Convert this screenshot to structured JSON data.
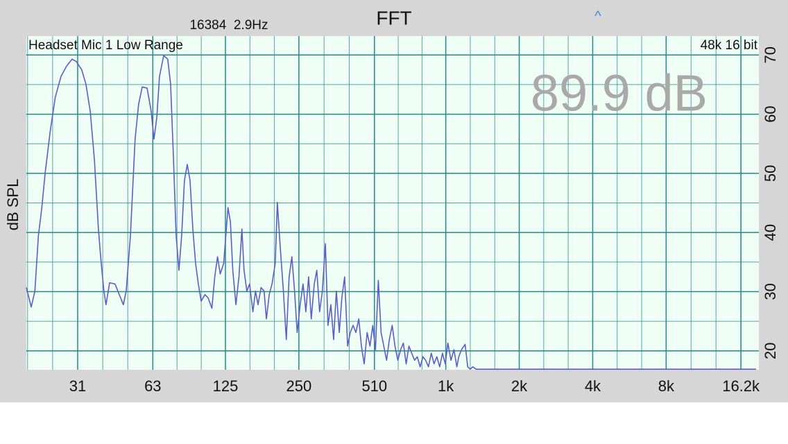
{
  "chart_data": {
    "type": "line",
    "title": "FFT",
    "y_label": "dB SPL",
    "annotations": {
      "resolution": "16384  2.9Hz",
      "input": "Headset Mic 1 Low Range",
      "format": "48k 16 bit",
      "level": "89.9 dB",
      "caret": "^"
    },
    "log_x": true,
    "grid": true,
    "color": "#5b5bd6",
    "xlim": [
      19.1,
      19190
    ],
    "xticks": [
      31,
      63,
      125,
      250,
      510,
      {
        "value": 1000,
        "label": "1k"
      },
      {
        "value": 2000,
        "label": "2k"
      },
      {
        "value": 4000,
        "label": "4k"
      },
      {
        "value": 8000,
        "label": "8k"
      },
      {
        "value": 16200,
        "label": "16.2k"
      }
    ],
    "ylim": [
      16.8,
      73.2
    ],
    "yticks": [
      20,
      30,
      40,
      50,
      60,
      70
    ],
    "x": [
      19.1,
      20.0,
      20.7,
      21.4,
      22.1,
      22.8,
      23.9,
      25.1,
      26.5,
      27.9,
      29.4,
      30.6,
      32.2,
      33.5,
      34.9,
      36.3,
      37.7,
      38.5,
      39.7,
      40.5,
      41.9,
      44.1,
      45.9,
      47.7,
      49.0,
      51.0,
      53.3,
      55.1,
      57.0,
      59.7,
      62.0,
      63.7,
      65.4,
      67.1,
      69.8,
      72.5,
      74.5,
      76.4,
      78.5,
      80.6,
      82.7,
      84.9,
      87.2,
      89.5,
      91.9,
      94.3,
      96.8,
      99.4,
      103,
      106,
      110,
      113,
      116,
      119,
      123,
      128,
      131,
      134,
      138,
      142,
      146,
      149,
      153,
      157,
      162,
      166,
      170,
      175,
      180,
      184,
      189,
      194,
      200,
      204,
      210,
      216,
      222,
      228,
      234,
      240,
      246,
      253,
      260,
      267,
      274,
      281,
      289,
      296,
      304,
      312,
      321,
      329,
      338,
      347,
      356,
      366,
      375,
      385,
      396,
      406,
      417,
      428,
      440,
      451,
      463,
      476,
      489,
      502,
      515,
      529,
      543,
      557,
      572,
      587,
      603,
      619,
      636,
      653,
      670,
      688,
      706,
      725,
      745,
      764,
      785,
      806,
      827,
      849,
      872,
      895,
      919,
      944,
      969,
      995,
      1020,
      1050,
      1080,
      1110,
      1130,
      1160,
      1200,
      1230,
      1260,
      1290,
      1330,
      18700
    ],
    "values": [
      30.7,
      27.4,
      30.1,
      39.5,
      44.2,
      50.0,
      57.0,
      62.9,
      66.4,
      68.1,
      69.3,
      68.9,
      67.5,
      65.1,
      60.5,
      52.3,
      40.6,
      35.9,
      30.1,
      27.8,
      31.5,
      31.3,
      29.5,
      27.8,
      30.1,
      39.5,
      55.8,
      61.7,
      64.6,
      64.4,
      60.5,
      55.8,
      59.4,
      66.4,
      69.9,
      69.3,
      65.1,
      53.5,
      39.5,
      33.6,
      39.5,
      48.8,
      51.5,
      48.8,
      40.6,
      34.8,
      31.3,
      28.4,
      29.5,
      29.0,
      27.2,
      32.5,
      35.9,
      33.0,
      34.8,
      44.2,
      41.8,
      33.6,
      27.8,
      32.5,
      40.6,
      33.6,
      30.1,
      31.3,
      26.6,
      30.1,
      27.8,
      30.7,
      30.1,
      25.4,
      29.5,
      31.3,
      34.8,
      45.1,
      37.1,
      30.1,
      21.9,
      32.5,
      35.9,
      30.1,
      23.1,
      27.8,
      31.3,
      26.6,
      32.5,
      25.4,
      31.3,
      33.6,
      26.6,
      30.1,
      38.1,
      24.3,
      27.8,
      21.9,
      30.1,
      23.1,
      29.0,
      32.5,
      20.8,
      23.1,
      24.3,
      23.1,
      25.4,
      20.8,
      17.8,
      23.1,
      20.8,
      24.3,
      20.2,
      31.9,
      23.1,
      20.8,
      18.4,
      21.9,
      24.3,
      20.8,
      18.4,
      20.2,
      21.3,
      17.8,
      20.8,
      19.6,
      18.4,
      19.0,
      17.3,
      19.0,
      18.4,
      17.3,
      19.6,
      17.8,
      19.0,
      17.3,
      19.6,
      17.8,
      21.3,
      18.4,
      20.2,
      17.3,
      19.0,
      20.2,
      21.1,
      17.3,
      16.9,
      17.3,
      16.9,
      16.9
    ]
  }
}
